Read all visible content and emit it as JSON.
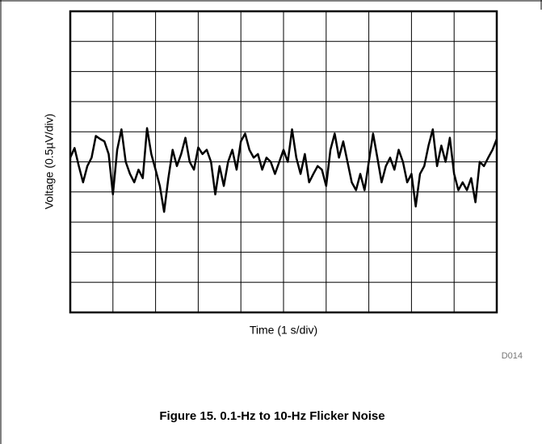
{
  "chart_data": {
    "type": "line",
    "xlabel": "Time (1 s/div)",
    "ylabel": "Voltage (0.5µV/div)",
    "code": "D014",
    "caption": "Figure 15. 0.1-Hz to 10-Hz Flicker Noise",
    "color": "#000000",
    "grid": true,
    "xlim": [
      0,
      10
    ],
    "xticks": [
      0,
      1,
      2,
      3,
      4,
      5,
      6,
      7,
      8,
      9,
      10
    ],
    "ylim": [
      -2.5,
      2.5
    ],
    "yticks": [
      -2.5,
      -2,
      -1.5,
      -1,
      -0.5,
      0,
      0.5,
      1,
      1.5,
      2,
      2.5
    ],
    "x": [
      0,
      0.1,
      0.2,
      0.3,
      0.4,
      0.5,
      0.6,
      0.7,
      0.8,
      0.9,
      1,
      1.1,
      1.2,
      1.3,
      1.4,
      1.5,
      1.6,
      1.7,
      1.8,
      1.9,
      2,
      2.1,
      2.2,
      2.3,
      2.4,
      2.5,
      2.6,
      2.7,
      2.8,
      2.9,
      3,
      3.1,
      3.2,
      3.3,
      3.4,
      3.5,
      3.6,
      3.7,
      3.8,
      3.9,
      4,
      4.1,
      4.2,
      4.3,
      4.4,
      4.5,
      4.6,
      4.7,
      4.8,
      4.9,
      5,
      5.1,
      5.2,
      5.3,
      5.4,
      5.5,
      5.6,
      5.7,
      5.8,
      5.9,
      6,
      6.1,
      6.2,
      6.3,
      6.4,
      6.5,
      6.6,
      6.7,
      6.8,
      6.9,
      7,
      7.1,
      7.2,
      7.3,
      7.4,
      7.5,
      7.6,
      7.7,
      7.8,
      7.9,
      8,
      8.1,
      8.2,
      8.3,
      8.4,
      8.5,
      8.6,
      8.7,
      8.8,
      8.9,
      9,
      9.1,
      9.2,
      9.3,
      9.4,
      9.5,
      9.6,
      9.7,
      9.8,
      9.9,
      10
    ],
    "values": [
      0.07,
      0.23,
      -0.07,
      -0.34,
      -0.07,
      0.07,
      0.43,
      0.38,
      0.34,
      0.13,
      -0.54,
      0.2,
      0.54,
      0,
      -0.2,
      -0.34,
      -0.13,
      -0.27,
      0.56,
      0.13,
      -0.13,
      -0.4,
      -0.83,
      -0.27,
      0.2,
      -0.07,
      0.13,
      0.4,
      0,
      -0.13,
      0.24,
      0.13,
      0.2,
      0,
      -0.54,
      -0.07,
      -0.4,
      0,
      0.2,
      -0.13,
      0.34,
      0.47,
      0.2,
      0.07,
      0.13,
      -0.13,
      0.07,
      0,
      -0.2,
      0,
      0.2,
      0,
      0.54,
      0.07,
      -0.2,
      0.13,
      -0.34,
      -0.2,
      -0.07,
      -0.13,
      -0.4,
      0.2,
      0.47,
      0.07,
      0.34,
      0,
      -0.34,
      -0.47,
      -0.2,
      -0.47,
      0,
      0.47,
      0.07,
      -0.34,
      -0.07,
      0.07,
      -0.13,
      0.2,
      0,
      -0.34,
      -0.2,
      -0.74,
      -0.2,
      -0.07,
      0.27,
      0.54,
      -0.07,
      0.27,
      0,
      0.4,
      -0.2,
      -0.47,
      -0.34,
      -0.47,
      -0.27,
      -0.67,
      0,
      -0.07,
      0.07,
      0.2,
      0.38
    ]
  }
}
